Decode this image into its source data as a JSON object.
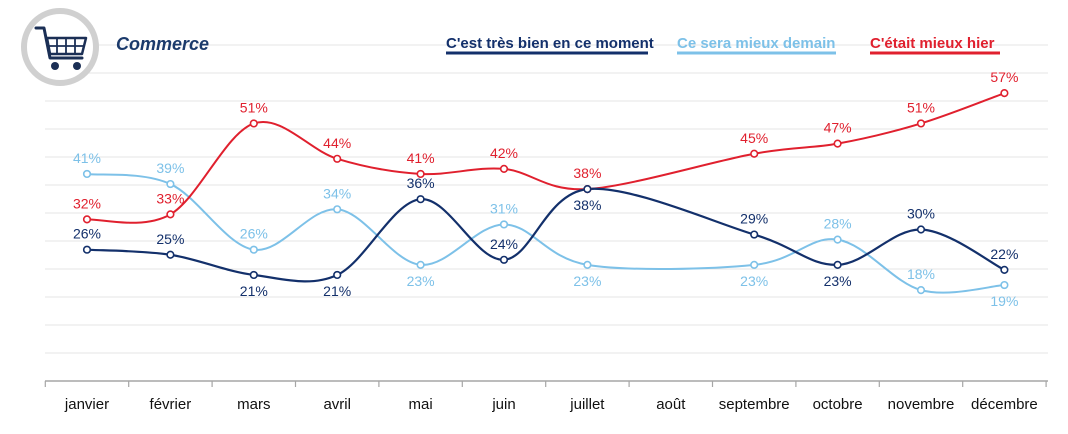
{
  "chart_data": {
    "type": "line",
    "title": "Commerce",
    "categories": [
      "janvier",
      "février",
      "mars",
      "avril",
      "mai",
      "juin",
      "juillet",
      "août",
      "septembre",
      "octobre",
      "novembre",
      "décembre"
    ],
    "ylim": [
      0,
      64
    ],
    "grid": true,
    "legend_position": "top-right",
    "series": [
      {
        "name": "C'est très bien en ce moment",
        "color": "#13306b",
        "values": [
          26,
          25,
          21,
          21,
          36,
          24,
          38,
          null,
          29,
          23,
          30,
          22
        ],
        "labels": [
          "26%",
          "25%",
          "21%",
          "21%",
          "36%",
          "24%",
          "38%",
          null,
          "29%",
          "23%",
          "30%",
          "22%"
        ]
      },
      {
        "name": "Ce sera mieux demain",
        "color": "#7dc1e8",
        "values": [
          41,
          39,
          26,
          34,
          23,
          31,
          23,
          null,
          23,
          28,
          18,
          19
        ],
        "labels": [
          "41%",
          "39%",
          "26%",
          "34%",
          "23%",
          "31%",
          "23%",
          null,
          "23%",
          "28%",
          "18%",
          "19%"
        ]
      },
      {
        "name": "C'était mieux hier",
        "color": "#e0202e",
        "values": [
          32,
          33,
          51,
          44,
          41,
          42,
          38,
          null,
          45,
          47,
          51,
          57
        ],
        "labels": [
          "32%",
          "33%",
          "51%",
          "44%",
          "41%",
          "42%",
          "38%",
          null,
          "45%",
          "47%",
          "51%",
          "57%"
        ]
      }
    ]
  },
  "icon": "shopping-cart-icon"
}
